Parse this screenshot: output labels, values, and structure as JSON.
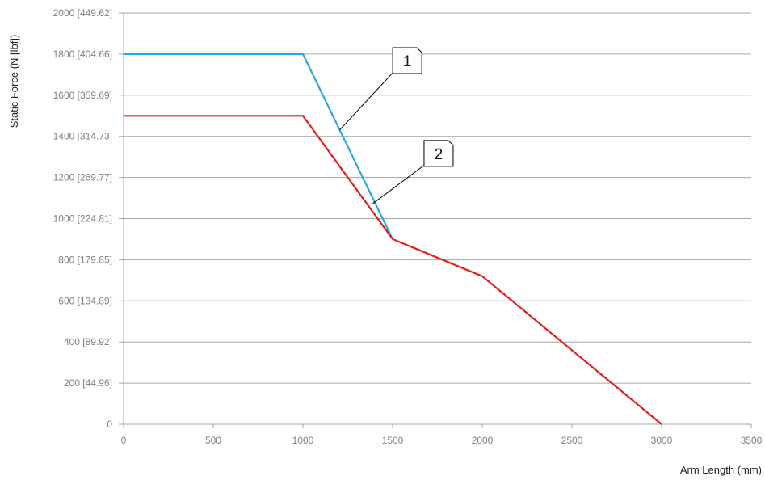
{
  "chart_data": {
    "type": "line",
    "title": "",
    "xlabel": "Arm Length (mm)",
    "ylabel": "Static Force (N [lbf])",
    "xlim": [
      0,
      3500
    ],
    "ylim": [
      0,
      2000
    ],
    "grid": true,
    "x_ticks": [
      {
        "value": 0,
        "label": "0"
      },
      {
        "value": 500,
        "label": "500"
      },
      {
        "value": 1000,
        "label": "1000"
      },
      {
        "value": 1500,
        "label": "1500"
      },
      {
        "value": 2000,
        "label": "2000"
      },
      {
        "value": 2500,
        "label": "2500"
      },
      {
        "value": 3000,
        "label": "3000"
      },
      {
        "value": 3500,
        "label": "3500"
      }
    ],
    "y_ticks": [
      {
        "value": 0,
        "label": "0"
      },
      {
        "value": 200,
        "label": "200 [44.96]"
      },
      {
        "value": 400,
        "label": "400 [89.92]"
      },
      {
        "value": 600,
        "label": "600 [134.89]"
      },
      {
        "value": 800,
        "label": "800 [179.85]"
      },
      {
        "value": 1000,
        "label": "1000 [224.81]"
      },
      {
        "value": 1200,
        "label": "1200 [269.77]"
      },
      {
        "value": 1400,
        "label": "1400 [314.73]"
      },
      {
        "value": 1600,
        "label": "1600 [359.69]"
      },
      {
        "value": 1800,
        "label": "1800 [404.66]"
      },
      {
        "value": 2000,
        "label": "2000 [449.62]"
      }
    ],
    "series": [
      {
        "label": "1",
        "color": "#29a8e0",
        "points": [
          [
            0,
            1800
          ],
          [
            1000,
            1800
          ],
          [
            1500,
            900
          ]
        ]
      },
      {
        "label": "2",
        "color": "#e32020",
        "points": [
          [
            0,
            1500
          ],
          [
            1000,
            1500
          ],
          [
            1500,
            900
          ],
          [
            2000,
            720
          ],
          [
            3000,
            0
          ]
        ]
      }
    ],
    "callouts": [
      {
        "text": "1",
        "series_index": 0,
        "target": [
          1205,
          1431
        ],
        "box_anchor": [
          1505,
          1713
        ]
      },
      {
        "text": "2",
        "series_index": 1,
        "target": [
          1385,
          1070
        ],
        "box_anchor": [
          1680,
          1262
        ]
      }
    ]
  }
}
